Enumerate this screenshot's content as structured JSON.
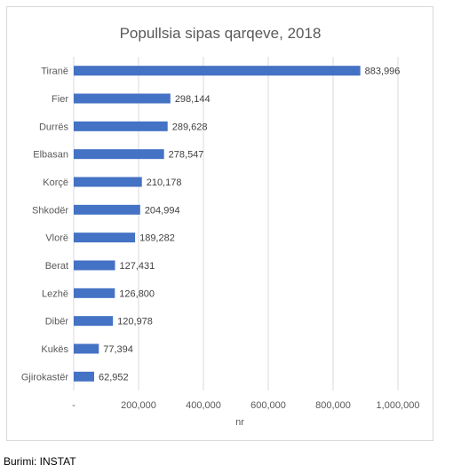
{
  "source_note": "Burimi: INSTAT",
  "chart_data": {
    "type": "bar",
    "orientation": "horizontal",
    "title": "Popullsia sipas qarqeve, 2018",
    "xlabel": "nr",
    "ylabel": "",
    "xlim": [
      0,
      1000000
    ],
    "x_ticks": [
      0,
      200000,
      400000,
      600000,
      800000,
      1000000
    ],
    "x_tick_labels": [
      "-",
      "200,000",
      "400,000",
      "600,000",
      "800,000",
      "1,000,000"
    ],
    "grid": true,
    "bar_color": "#4472c4",
    "categories": [
      "Tiranë",
      "Fier",
      "Durrës",
      "Elbasan",
      "Korçë",
      "Shkodër",
      "Vlorë",
      "Berat",
      "Lezhë",
      "Dibër",
      "Kukës",
      "Gjirokastër"
    ],
    "values": [
      883996,
      298144,
      289628,
      278547,
      210178,
      204994,
      189282,
      127431,
      126800,
      120978,
      77394,
      62952
    ],
    "value_labels": [
      "883,996",
      "298,144",
      "289,628",
      "278,547",
      "210,178",
      "204,994",
      "189,282",
      "127,431",
      "126,800",
      "120,978",
      "77,394",
      "62,952"
    ]
  }
}
